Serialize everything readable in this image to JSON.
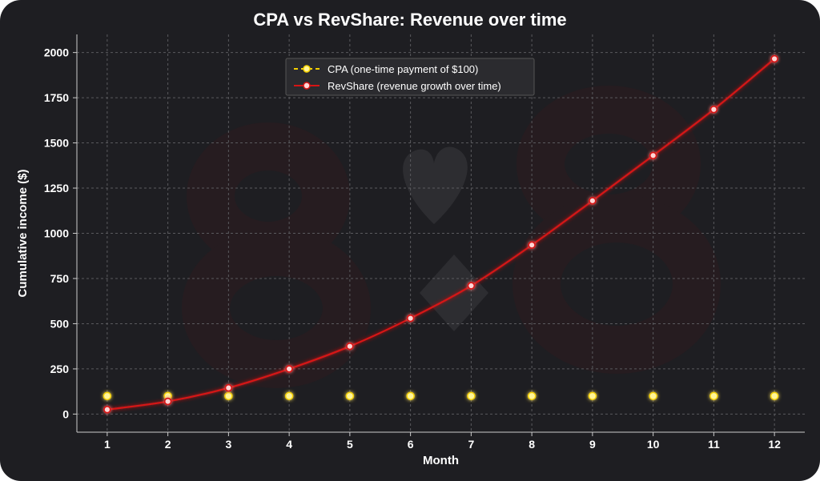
{
  "chart_data": {
    "type": "line",
    "title": "CPA vs RevShare: Revenue over time",
    "xlabel": "Month",
    "ylabel": "Cumulative income  ($)",
    "x": [
      1,
      2,
      3,
      4,
      5,
      6,
      7,
      8,
      9,
      10,
      11,
      12
    ],
    "xlim": [
      0.5,
      12.5
    ],
    "ylim": [
      -100,
      2100
    ],
    "yticks": [
      0,
      250,
      500,
      750,
      1000,
      1250,
      1500,
      1750,
      2000
    ],
    "grid": true,
    "legend_position": "top-left",
    "series": [
      {
        "name": "CPA (one-time payment of $100)",
        "values": [
          100,
          100,
          100,
          100,
          100,
          100,
          100,
          100,
          100,
          100,
          100,
          100
        ],
        "color": "#f5d000",
        "style": "dashed"
      },
      {
        "name": "RevShare (revenue growth over time)",
        "values": [
          25,
          70,
          145,
          250,
          375,
          530,
          710,
          935,
          1180,
          1430,
          1685,
          1965
        ],
        "color": "#d61414",
        "style": "solid"
      }
    ]
  },
  "watermark": "8♥♦8"
}
